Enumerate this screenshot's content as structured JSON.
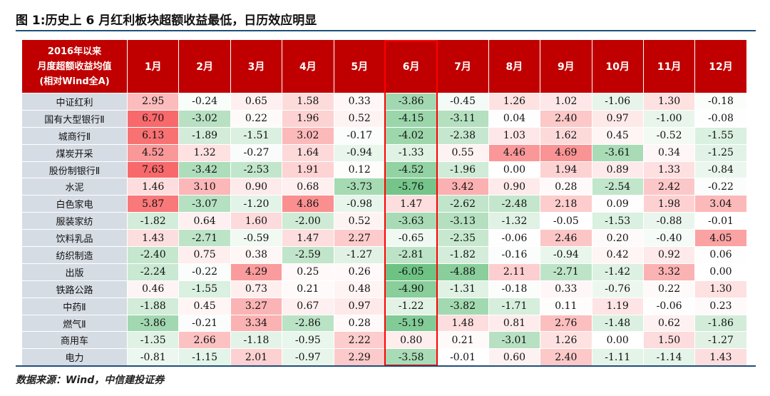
{
  "title": "图 1:历史上 6 月红利板块超额收益最低，日历效应明显",
  "source": "数据来源：Wind，中信建投证券",
  "colors": {
    "header_bg": "#c00000",
    "label_bg": "#d6dce4",
    "positive": "#f8696b",
    "negative": "#63be7b",
    "highlight_border": "#ff0000",
    "rule": "#1f4e79"
  },
  "chart_data": {
    "type": "table",
    "corner_header": [
      "2016年以来",
      "月度超额收益均值",
      "(相对Wind全A)"
    ],
    "columns": [
      "1月",
      "2月",
      "3月",
      "4月",
      "5月",
      "6月",
      "7月",
      "8月",
      "9月",
      "10月",
      "11月",
      "12月"
    ],
    "highlight_column": "6月",
    "rows": [
      {
        "label": "中证红利",
        "values": [
          "2.95",
          "-0.24",
          "0.65",
          "1.58",
          "0.33",
          "-3.86",
          "-0.45",
          "1.26",
          "1.02",
          "-1.06",
          "1.30",
          "-0.18"
        ]
      },
      {
        "label": "国有大型银行Ⅱ",
        "values": [
          "6.70",
          "-3.02",
          "0.22",
          "1.96",
          "0.52",
          "-4.15",
          "-3.11",
          "0.04",
          "2.40",
          "0.97",
          "-1.00",
          "-0.08"
        ]
      },
      {
        "label": "城商行Ⅱ",
        "values": [
          "6.13",
          "-1.89",
          "-1.51",
          "3.02",
          "-0.17",
          "-4.02",
          "-2.38",
          "1.03",
          "1.62",
          "0.45",
          "-0.52",
          "-1.55"
        ]
      },
      {
        "label": "煤炭开采",
        "values": [
          "4.52",
          "1.32",
          "-0.27",
          "1.64",
          "-0.94",
          "-1.33",
          "0.55",
          "4.46",
          "4.69",
          "-3.61",
          "0.34",
          "-1.25"
        ]
      },
      {
        "label": "股份制银行Ⅱ",
        "values": [
          "7.63",
          "-3.42",
          "-2.53",
          "1.91",
          "0.12",
          "-4.52",
          "-1.96",
          "0.00",
          "1.94",
          "0.89",
          "1.33",
          "-0.84"
        ]
      },
      {
        "label": "水泥",
        "values": [
          "1.46",
          "3.10",
          "0.90",
          "0.68",
          "-3.73",
          "-5.76",
          "3.42",
          "0.90",
          "0.28",
          "-2.54",
          "2.42",
          "-0.22"
        ]
      },
      {
        "label": "白色家电",
        "values": [
          "5.87",
          "-3.07",
          "-1.20",
          "4.86",
          "-0.98",
          "1.47",
          "-2.62",
          "-2.48",
          "2.18",
          "0.09",
          "1.98",
          "3.04"
        ]
      },
      {
        "label": "服装家纺",
        "values": [
          "-1.82",
          "0.64",
          "1.60",
          "-2.00",
          "0.52",
          "-3.63",
          "-3.13",
          "-1.32",
          "-0.05",
          "-1.53",
          "-0.88",
          "-0.01"
        ]
      },
      {
        "label": "饮料乳品",
        "values": [
          "1.43",
          "-2.71",
          "-0.59",
          "1.47",
          "2.27",
          "-0.65",
          "-2.35",
          "-0.06",
          "2.46",
          "0.20",
          "-0.40",
          "4.05"
        ]
      },
      {
        "label": "纺织制造",
        "values": [
          "-2.40",
          "0.75",
          "0.38",
          "-2.59",
          "-1.27",
          "-2.81",
          "-1.82",
          "-0.16",
          "-0.94",
          "0.42",
          "0.92",
          "0.06"
        ]
      },
      {
        "label": "出版",
        "values": [
          "-2.24",
          "-0.22",
          "4.29",
          "0.25",
          "0.26",
          "-6.05",
          "-4.88",
          "2.11",
          "-2.71",
          "-1.42",
          "3.32",
          "0.00"
        ]
      },
      {
        "label": "铁路公路",
        "values": [
          "0.46",
          "-1.55",
          "0.73",
          "0.21",
          "0.48",
          "-4.90",
          "-1.31",
          "-0.18",
          "0.33",
          "-0.76",
          "0.22",
          "1.30"
        ]
      },
      {
        "label": "中药Ⅱ",
        "values": [
          "-1.88",
          "0.45",
          "3.27",
          "0.67",
          "0.97",
          "-1.22",
          "-3.82",
          "-1.71",
          "0.11",
          "1.19",
          "-0.06",
          "0.23"
        ]
      },
      {
        "label": "燃气Ⅱ",
        "values": [
          "-3.86",
          "-0.21",
          "3.34",
          "-2.86",
          "0.28",
          "-5.19",
          "1.48",
          "0.81",
          "2.76",
          "-1.48",
          "0.62",
          "-1.86"
        ]
      },
      {
        "label": "商用车",
        "values": [
          "-1.35",
          "2.66",
          "-1.18",
          "-0.95",
          "2.22",
          "0.80",
          "0.21",
          "-3.01",
          "1.26",
          "0.00",
          "1.50",
          "-1.27"
        ]
      },
      {
        "label": "电力",
        "values": [
          "-0.81",
          "-1.15",
          "2.01",
          "-0.97",
          "2.29",
          "-3.58",
          "-0.01",
          "0.60",
          "2.40",
          "-1.11",
          "-1.14",
          "1.43"
        ]
      }
    ]
  }
}
